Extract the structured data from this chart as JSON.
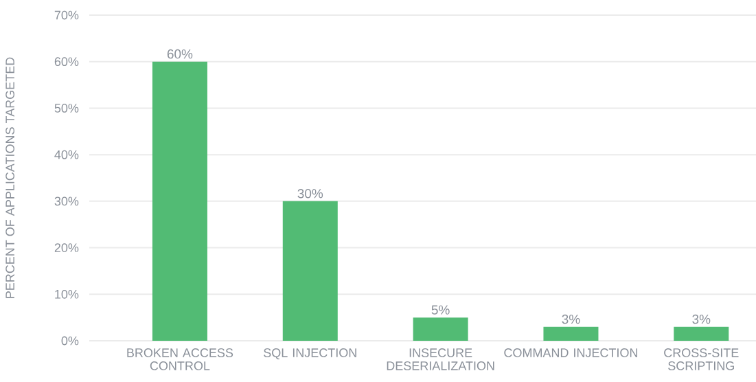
{
  "chart_data": {
    "type": "bar",
    "ylabel": "PERCENT OF APPLICATIONS TARGETED",
    "categories": [
      "BROKEN ACCESS CONTROL",
      "SQL INJECTION",
      "INSECURE DESERIALIZATION",
      "COMMAND INJECTION",
      "CROSS-SITE SCRIPTING"
    ],
    "values": [
      60,
      30,
      5,
      3,
      3
    ],
    "value_labels": [
      "60%",
      "30%",
      "5%",
      "3%",
      "3%"
    ],
    "color": "#52bb74",
    "ylim": [
      0,
      70
    ],
    "yticks": [
      {
        "value": 0,
        "label": "0%"
      },
      {
        "value": 10,
        "label": "10%"
      },
      {
        "value": 20,
        "label": "20%"
      },
      {
        "value": 30,
        "label": "30%"
      },
      {
        "value": 40,
        "label": "40%"
      },
      {
        "value": 50,
        "label": "50%"
      },
      {
        "value": 60,
        "label": "60%"
      },
      {
        "value": 70,
        "label": "70%"
      }
    ],
    "grid": "y"
  }
}
